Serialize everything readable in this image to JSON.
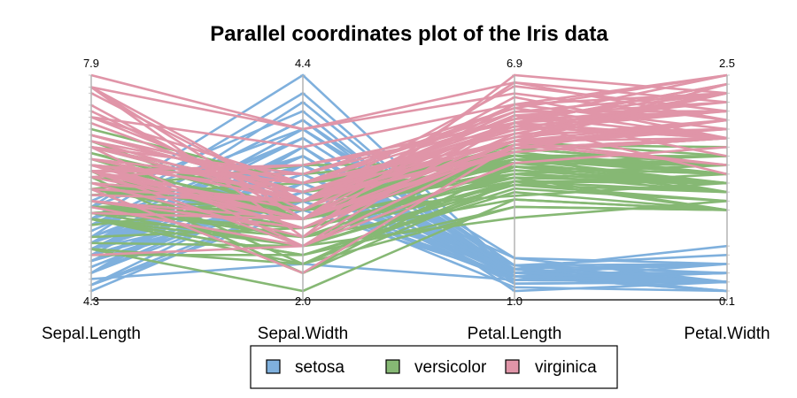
{
  "chart_data": {
    "type": "parallel-coordinates",
    "title": "Parallel coordinates plot of the Iris data",
    "axes": [
      {
        "name": "Sepal.Length",
        "min": 4.3,
        "max": 7.9,
        "min_label": "4.3",
        "max_label": "7.9"
      },
      {
        "name": "Sepal.Width",
        "min": 2.0,
        "max": 4.4,
        "min_label": "2.0",
        "max_label": "4.4"
      },
      {
        "name": "Petal.Length",
        "min": 1.0,
        "max": 6.9,
        "min_label": "1.0",
        "max_label": "6.9"
      },
      {
        "name": "Petal.Width",
        "min": 0.1,
        "max": 2.5,
        "min_label": "0.1",
        "max_label": "2.5"
      }
    ],
    "legend_position": "bottom",
    "series": [
      {
        "name": "setosa",
        "color": "#7fb0dd",
        "values": [
          [
            5.1,
            3.5,
            1.4,
            0.2
          ],
          [
            4.9,
            3.0,
            1.4,
            0.2
          ],
          [
            4.7,
            3.2,
            1.3,
            0.2
          ],
          [
            4.6,
            3.1,
            1.5,
            0.2
          ],
          [
            5.0,
            3.6,
            1.4,
            0.2
          ],
          [
            5.4,
            3.9,
            1.7,
            0.4
          ],
          [
            4.6,
            3.4,
            1.4,
            0.3
          ],
          [
            5.0,
            3.4,
            1.5,
            0.2
          ],
          [
            4.4,
            2.9,
            1.4,
            0.2
          ],
          [
            4.9,
            3.1,
            1.5,
            0.1
          ],
          [
            5.4,
            3.7,
            1.5,
            0.2
          ],
          [
            4.8,
            3.4,
            1.6,
            0.2
          ],
          [
            4.8,
            3.0,
            1.4,
            0.1
          ],
          [
            4.3,
            3.0,
            1.1,
            0.1
          ],
          [
            5.8,
            4.0,
            1.2,
            0.2
          ],
          [
            5.7,
            4.4,
            1.5,
            0.4
          ],
          [
            5.4,
            3.9,
            1.3,
            0.4
          ],
          [
            5.1,
            3.5,
            1.4,
            0.3
          ],
          [
            5.7,
            3.8,
            1.7,
            0.3
          ],
          [
            5.1,
            3.8,
            1.5,
            0.3
          ],
          [
            5.4,
            3.4,
            1.7,
            0.2
          ],
          [
            5.1,
            3.7,
            1.5,
            0.4
          ],
          [
            4.6,
            3.6,
            1.0,
            0.2
          ],
          [
            5.1,
            3.3,
            1.7,
            0.5
          ],
          [
            4.8,
            3.4,
            1.9,
            0.2
          ],
          [
            5.0,
            3.0,
            1.6,
            0.2
          ],
          [
            5.0,
            3.4,
            1.6,
            0.4
          ],
          [
            5.2,
            3.5,
            1.5,
            0.2
          ],
          [
            5.2,
            3.4,
            1.4,
            0.2
          ],
          [
            4.7,
            3.2,
            1.6,
            0.2
          ],
          [
            4.8,
            3.1,
            1.6,
            0.2
          ],
          [
            5.4,
            3.4,
            1.5,
            0.4
          ],
          [
            5.2,
            4.1,
            1.5,
            0.1
          ],
          [
            5.5,
            4.2,
            1.4,
            0.2
          ],
          [
            4.9,
            3.1,
            1.5,
            0.2
          ],
          [
            5.0,
            3.2,
            1.2,
            0.2
          ],
          [
            5.5,
            3.5,
            1.3,
            0.2
          ],
          [
            4.9,
            3.6,
            1.4,
            0.1
          ],
          [
            4.4,
            3.0,
            1.3,
            0.2
          ],
          [
            5.1,
            3.4,
            1.5,
            0.2
          ],
          [
            5.0,
            3.5,
            1.3,
            0.3
          ],
          [
            4.5,
            2.3,
            1.3,
            0.3
          ],
          [
            4.4,
            3.2,
            1.3,
            0.2
          ],
          [
            5.0,
            3.5,
            1.6,
            0.6
          ],
          [
            5.1,
            3.8,
            1.9,
            0.4
          ],
          [
            4.8,
            3.0,
            1.4,
            0.3
          ],
          [
            5.1,
            3.8,
            1.6,
            0.2
          ],
          [
            4.6,
            3.2,
            1.4,
            0.2
          ],
          [
            5.3,
            3.7,
            1.5,
            0.2
          ],
          [
            5.0,
            3.3,
            1.4,
            0.2
          ]
        ]
      },
      {
        "name": "versicolor",
        "color": "#86b874",
        "values": [
          [
            7.0,
            3.2,
            4.7,
            1.4
          ],
          [
            6.4,
            3.2,
            4.5,
            1.5
          ],
          [
            6.9,
            3.1,
            4.9,
            1.5
          ],
          [
            5.5,
            2.3,
            4.0,
            1.3
          ],
          [
            6.5,
            2.8,
            4.6,
            1.5
          ],
          [
            5.7,
            2.8,
            4.5,
            1.3
          ],
          [
            6.3,
            3.3,
            4.7,
            1.6
          ],
          [
            4.9,
            2.4,
            3.3,
            1.0
          ],
          [
            6.6,
            2.9,
            4.6,
            1.3
          ],
          [
            5.2,
            2.7,
            3.9,
            1.4
          ],
          [
            5.0,
            2.0,
            3.5,
            1.0
          ],
          [
            5.9,
            3.0,
            4.2,
            1.5
          ],
          [
            6.0,
            2.2,
            4.0,
            1.0
          ],
          [
            6.1,
            2.9,
            4.7,
            1.4
          ],
          [
            5.6,
            2.9,
            3.6,
            1.3
          ],
          [
            6.7,
            3.1,
            4.4,
            1.4
          ],
          [
            5.6,
            3.0,
            4.5,
            1.5
          ],
          [
            5.8,
            2.7,
            4.1,
            1.0
          ],
          [
            6.2,
            2.2,
            4.5,
            1.5
          ],
          [
            5.6,
            2.5,
            3.9,
            1.1
          ],
          [
            5.9,
            3.2,
            4.8,
            1.8
          ],
          [
            6.1,
            2.8,
            4.0,
            1.3
          ],
          [
            6.3,
            2.5,
            4.9,
            1.5
          ],
          [
            6.1,
            2.8,
            4.7,
            1.2
          ],
          [
            6.4,
            2.9,
            4.3,
            1.3
          ],
          [
            6.6,
            3.0,
            4.4,
            1.4
          ],
          [
            6.8,
            2.8,
            4.8,
            1.4
          ],
          [
            6.7,
            3.0,
            5.0,
            1.7
          ],
          [
            6.0,
            2.9,
            4.5,
            1.5
          ],
          [
            5.7,
            2.6,
            3.5,
            1.0
          ],
          [
            5.5,
            2.4,
            3.8,
            1.1
          ],
          [
            5.5,
            2.4,
            3.7,
            1.0
          ],
          [
            5.8,
            2.7,
            3.9,
            1.2
          ],
          [
            6.0,
            2.7,
            5.1,
            1.6
          ],
          [
            5.4,
            3.0,
            4.5,
            1.5
          ],
          [
            6.0,
            3.4,
            4.5,
            1.6
          ],
          [
            6.7,
            3.1,
            4.7,
            1.5
          ],
          [
            6.3,
            2.3,
            4.4,
            1.3
          ],
          [
            5.6,
            3.0,
            4.1,
            1.3
          ],
          [
            5.5,
            2.5,
            4.0,
            1.3
          ],
          [
            5.5,
            2.6,
            4.4,
            1.2
          ],
          [
            6.1,
            3.0,
            4.6,
            1.4
          ],
          [
            5.8,
            2.6,
            4.0,
            1.2
          ],
          [
            5.0,
            2.3,
            3.3,
            1.0
          ],
          [
            5.6,
            2.7,
            4.2,
            1.3
          ],
          [
            5.7,
            3.0,
            4.2,
            1.2
          ],
          [
            5.7,
            2.9,
            4.2,
            1.3
          ],
          [
            6.2,
            2.9,
            4.3,
            1.3
          ],
          [
            5.1,
            2.5,
            3.0,
            1.1
          ],
          [
            5.7,
            2.8,
            4.1,
            1.3
          ]
        ]
      },
      {
        "name": "virginica",
        "color": "#e095a8",
        "values": [
          [
            6.3,
            3.3,
            6.0,
            2.5
          ],
          [
            5.8,
            2.7,
            5.1,
            1.9
          ],
          [
            7.1,
            3.0,
            5.9,
            2.1
          ],
          [
            6.3,
            2.9,
            5.6,
            1.8
          ],
          [
            6.5,
            3.0,
            5.8,
            2.2
          ],
          [
            7.6,
            3.0,
            6.6,
            2.1
          ],
          [
            4.9,
            2.5,
            4.5,
            1.7
          ],
          [
            7.3,
            2.9,
            6.3,
            1.8
          ],
          [
            6.7,
            2.5,
            5.8,
            1.8
          ],
          [
            7.2,
            3.6,
            6.1,
            2.5
          ],
          [
            6.5,
            3.2,
            5.1,
            2.0
          ],
          [
            6.4,
            2.7,
            5.3,
            1.9
          ],
          [
            6.8,
            3.0,
            5.5,
            2.1
          ],
          [
            5.7,
            2.5,
            5.0,
            2.0
          ],
          [
            5.8,
            2.8,
            5.1,
            2.4
          ],
          [
            6.4,
            3.2,
            5.3,
            2.3
          ],
          [
            6.5,
            3.0,
            5.5,
            1.8
          ],
          [
            7.7,
            3.8,
            6.7,
            2.2
          ],
          [
            7.7,
            2.6,
            6.9,
            2.3
          ],
          [
            6.0,
            2.2,
            5.0,
            1.5
          ],
          [
            6.9,
            3.2,
            5.7,
            2.3
          ],
          [
            5.6,
            2.8,
            4.9,
            2.0
          ],
          [
            7.7,
            2.8,
            6.7,
            2.0
          ],
          [
            6.3,
            2.7,
            4.9,
            1.8
          ],
          [
            6.7,
            3.3,
            5.7,
            2.1
          ],
          [
            7.2,
            3.2,
            6.0,
            1.8
          ],
          [
            6.2,
            2.8,
            4.8,
            1.8
          ],
          [
            6.1,
            3.0,
            4.9,
            1.8
          ],
          [
            6.4,
            2.8,
            5.6,
            2.1
          ],
          [
            7.2,
            3.0,
            5.8,
            1.6
          ],
          [
            7.4,
            2.8,
            6.1,
            1.9
          ],
          [
            7.9,
            3.8,
            6.4,
            2.0
          ],
          [
            6.4,
            2.8,
            5.6,
            2.2
          ],
          [
            6.3,
            2.8,
            5.1,
            1.5
          ],
          [
            6.1,
            2.6,
            5.6,
            1.4
          ],
          [
            7.7,
            3.0,
            6.1,
            2.3
          ],
          [
            6.3,
            3.4,
            5.6,
            2.4
          ],
          [
            6.4,
            3.1,
            5.5,
            1.8
          ],
          [
            6.0,
            3.0,
            4.8,
            1.8
          ],
          [
            6.9,
            3.1,
            5.4,
            2.1
          ],
          [
            6.7,
            3.1,
            5.6,
            2.4
          ],
          [
            6.9,
            3.1,
            5.1,
            2.3
          ],
          [
            5.8,
            2.7,
            5.1,
            1.9
          ],
          [
            6.8,
            3.2,
            5.9,
            2.3
          ],
          [
            6.7,
            3.3,
            5.7,
            2.5
          ],
          [
            6.7,
            3.0,
            5.2,
            2.3
          ],
          [
            6.3,
            2.5,
            5.0,
            1.9
          ],
          [
            6.5,
            3.0,
            5.2,
            2.0
          ],
          [
            6.2,
            3.4,
            5.4,
            2.3
          ],
          [
            5.9,
            3.0,
            5.1,
            1.8
          ]
        ]
      }
    ]
  }
}
